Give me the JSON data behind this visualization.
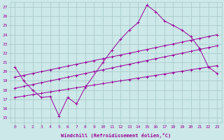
{
  "bg_color": "#cce8e8",
  "grid_color": "#aacccc",
  "line_color": "#990099",
  "xlabel": "Windchill (Refroidissement éolien,°C)",
  "xtick_labels": [
    "0",
    "1",
    "2",
    "3",
    "4",
    "5",
    "6",
    "7",
    "8",
    "9",
    "10",
    "11",
    "12",
    "13",
    "14",
    "15",
    "16",
    "17",
    "18",
    "19",
    "20",
    "21",
    "22",
    "23"
  ],
  "ytick_labels": [
    "15",
    "16",
    "17",
    "18",
    "19",
    "20",
    "21",
    "22",
    "23",
    "24",
    "25",
    "26",
    "27"
  ],
  "ytick_vals": [
    15,
    16,
    17,
    18,
    19,
    20,
    21,
    22,
    23,
    24,
    25,
    26,
    27
  ],
  "xlim": [
    -0.5,
    23.5
  ],
  "ylim": [
    14.5,
    27.5
  ],
  "series": [
    {
      "x": [
        0,
        1,
        2,
        3,
        4,
        5,
        6,
        7,
        8,
        10,
        11,
        12,
        13,
        14,
        15,
        16,
        17,
        18,
        19,
        20,
        21,
        22,
        23
      ],
      "y": [
        20.5,
        19.0,
        18.0,
        17.2,
        17.3,
        15.2,
        17.2,
        16.5,
        18.3,
        21.0,
        22.3,
        23.5,
        24.5,
        25.3,
        27.2,
        26.5,
        25.5,
        25.0,
        24.5,
        23.8,
        22.5,
        20.5,
        19.8
      ],
      "marker": true
    },
    {
      "x": [
        0,
        1,
        2,
        3,
        4,
        5,
        6,
        7,
        8,
        9,
        10,
        11,
        12,
        13,
        14,
        15,
        16,
        17,
        18,
        19,
        20,
        21,
        22,
        23
      ],
      "y": [
        19.4,
        19.6,
        19.8,
        20.0,
        20.2,
        20.4,
        20.6,
        20.8,
        21.0,
        21.2,
        21.4,
        21.6,
        21.8,
        22.0,
        22.2,
        22.4,
        22.6,
        22.8,
        23.0,
        23.2,
        23.4,
        23.6,
        23.8,
        24.0
      ],
      "marker": true
    },
    {
      "x": [
        0,
        1,
        2,
        3,
        4,
        5,
        6,
        7,
        8,
        9,
        10,
        11,
        12,
        13,
        14,
        15,
        16,
        17,
        18,
        19,
        20,
        21,
        22,
        23
      ],
      "y": [
        18.2,
        18.4,
        18.6,
        18.8,
        19.0,
        19.2,
        19.4,
        19.6,
        19.8,
        20.0,
        20.2,
        20.4,
        20.6,
        20.8,
        21.0,
        21.2,
        21.4,
        21.6,
        21.8,
        22.0,
        22.2,
        22.4,
        22.6,
        22.8
      ],
      "marker": true
    },
    {
      "x": [
        0,
        1,
        2,
        3,
        4,
        5,
        6,
        7,
        8,
        9,
        10,
        11,
        12,
        13,
        14,
        15,
        16,
        17,
        18,
        19,
        20,
        21,
        22,
        23
      ],
      "y": [
        17.2,
        17.35,
        17.5,
        17.65,
        17.8,
        17.95,
        18.1,
        18.25,
        18.4,
        18.55,
        18.7,
        18.85,
        19.0,
        19.15,
        19.3,
        19.45,
        19.6,
        19.75,
        19.9,
        20.05,
        20.2,
        20.35,
        20.5,
        20.65
      ],
      "marker": true
    }
  ]
}
